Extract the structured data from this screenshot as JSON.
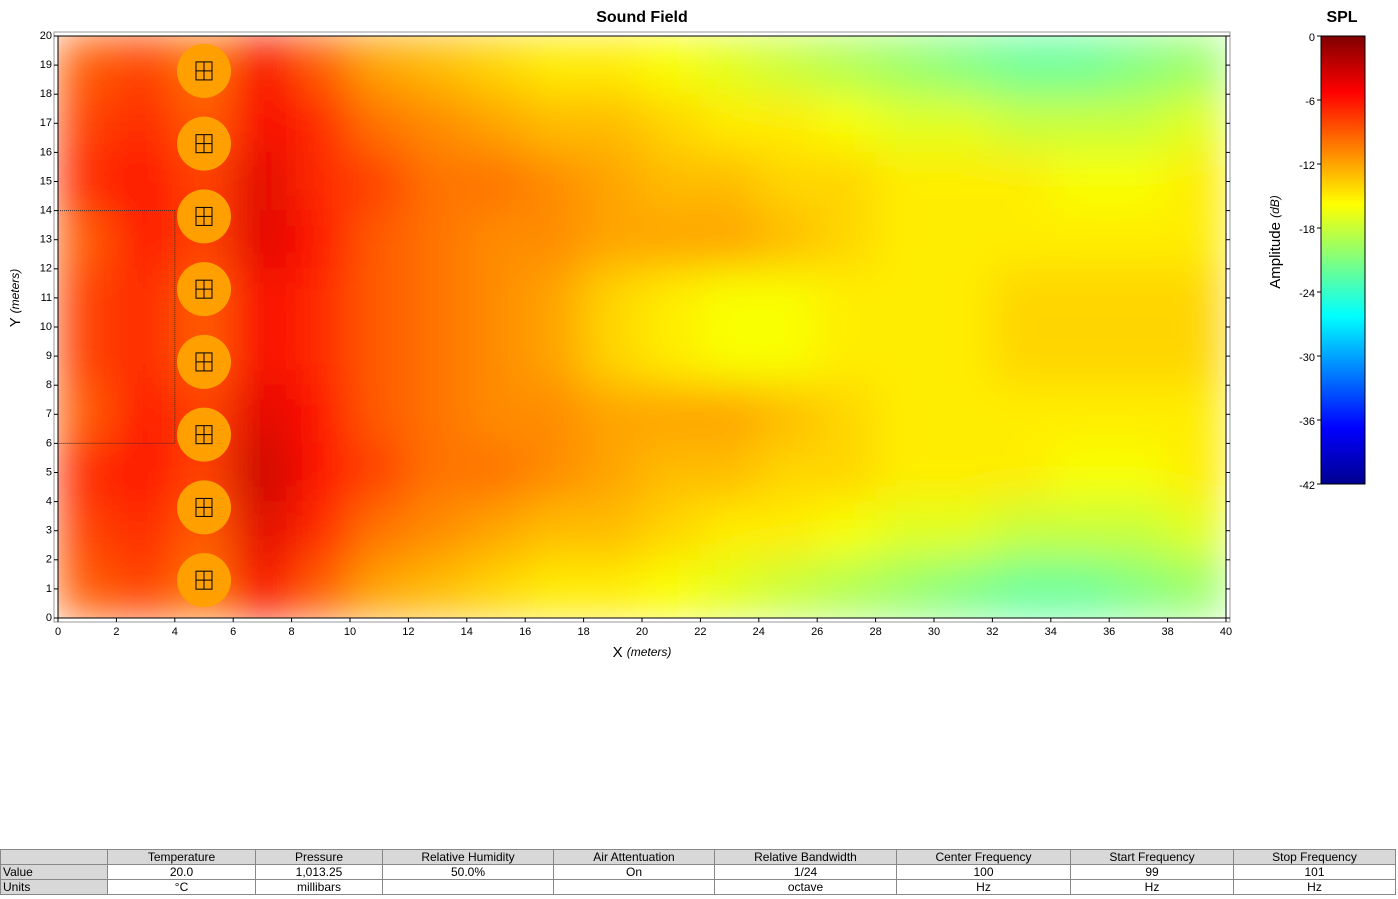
{
  "chart_data": {
    "type": "heatmap",
    "title": "Sound Field",
    "xlabel": "X",
    "xlabel_unit": "(meters)",
    "ylabel": "Y",
    "ylabel_unit": "(meters)",
    "xlim": [
      0,
      40
    ],
    "ylim": [
      0,
      20
    ],
    "xticks": [
      0,
      2,
      4,
      6,
      8,
      10,
      12,
      14,
      16,
      18,
      20,
      22,
      24,
      26,
      28,
      30,
      32,
      34,
      36,
      38,
      40
    ],
    "yticks": [
      0,
      1,
      2,
      3,
      4,
      5,
      6,
      7,
      8,
      9,
      10,
      11,
      12,
      13,
      14,
      15,
      16,
      17,
      18,
      19,
      20
    ],
    "x": [
      1,
      3,
      5,
      7,
      9,
      11,
      13,
      15,
      17,
      19,
      21,
      23,
      25,
      27,
      29,
      31,
      33,
      35,
      37,
      39
    ],
    "y": [
      19,
      17,
      15,
      13,
      11,
      9,
      7,
      5,
      3,
      1
    ],
    "z": [
      [
        -9,
        -8,
        -10,
        -5,
        -9,
        -12,
        -13,
        -14,
        -15,
        -15,
        -16,
        -17,
        -18,
        -19,
        -20,
        -21,
        -22,
        -22,
        -21,
        -20
      ],
      [
        -8,
        -7,
        -9,
        -5,
        -7,
        -10,
        -11,
        -12,
        -13,
        -13,
        -14,
        -15,
        -15,
        -16,
        -17,
        -17,
        -18,
        -18,
        -18,
        -17
      ],
      [
        -7,
        -6,
        -8,
        -4,
        -7,
        -8,
        -10,
        -10,
        -11,
        -12,
        -13,
        -13,
        -14,
        -14,
        -15,
        -15,
        -15,
        -16,
        -16,
        -15
      ],
      [
        -9,
        -6,
        -8,
        -4,
        -6,
        -9,
        -10,
        -11,
        -11,
        -12,
        -12,
        -12,
        -13,
        -14,
        -15,
        -15,
        -15,
        -15,
        -15,
        -15
      ],
      [
        -8,
        -7,
        -9,
        -5,
        -7,
        -9,
        -10,
        -11,
        -12,
        -14,
        -15,
        -16,
        -16,
        -15,
        -15,
        -15,
        -14,
        -14,
        -14,
        -14
      ],
      [
        -8,
        -7,
        -9,
        -5,
        -7,
        -9,
        -10,
        -11,
        -12,
        -14,
        -15,
        -16,
        -16,
        -15,
        -15,
        -15,
        -14,
        -14,
        -14,
        -14
      ],
      [
        -9,
        -6,
        -8,
        -4,
        -6,
        -9,
        -10,
        -11,
        -11,
        -12,
        -12,
        -12,
        -13,
        -14,
        -15,
        -15,
        -15,
        -15,
        -15,
        -15
      ],
      [
        -7,
        -6,
        -8,
        -3,
        -6,
        -8,
        -10,
        -10,
        -11,
        -12,
        -13,
        -13,
        -14,
        -14,
        -15,
        -15,
        -15,
        -16,
        -16,
        -15
      ],
      [
        -8,
        -7,
        -9,
        -4,
        -7,
        -10,
        -11,
        -12,
        -13,
        -13,
        -14,
        -15,
        -15,
        -16,
        -17,
        -17,
        -18,
        -18,
        -18,
        -17
      ],
      [
        -9,
        -8,
        -10,
        -5,
        -9,
        -12,
        -13,
        -14,
        -15,
        -15,
        -16,
        -17,
        -18,
        -19,
        -20,
        -21,
        -22,
        -22,
        -21,
        -20
      ]
    ],
    "sources": {
      "x": [
        5,
        5,
        5,
        5,
        5,
        5,
        5,
        5
      ],
      "y": [
        1.3,
        3.8,
        6.3,
        8.8,
        11.3,
        13.8,
        16.3,
        18.8
      ]
    },
    "source_color": "#ffa000",
    "colorbar": {
      "title": "SPL",
      "label": "Amplitude",
      "label_unit": "(dB)",
      "clim": [
        -42,
        0
      ],
      "ticks": [
        0,
        -6,
        -12,
        -18,
        -24,
        -30,
        -36,
        -42
      ],
      "colormap": "jet"
    }
  },
  "table": {
    "headers": [
      "Temperature",
      "Pressure",
      "Relative Humidity",
      "Air Attentuation",
      "Relative Bandwidth",
      "Center Frequency",
      "Start Frequency",
      "Stop Frequency"
    ],
    "rows": [
      [
        "Value",
        "20.0",
        "1,013.25",
        "50.0%",
        "On",
        "1/24",
        "100",
        "99",
        "101"
      ],
      [
        "Units",
        "°C",
        "millibars",
        null,
        null,
        "octave",
        "Hz",
        "Hz",
        "Hz"
      ]
    ]
  }
}
